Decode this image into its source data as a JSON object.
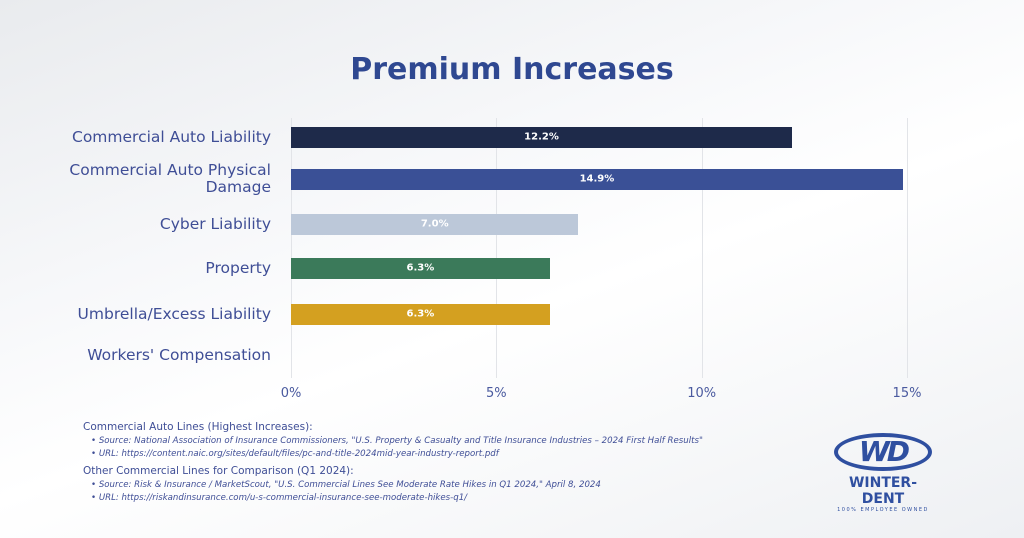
{
  "chart_data": {
    "type": "bar",
    "orientation": "horizontal",
    "title": "Premium Increases",
    "categories": [
      "Commercial Auto Liability",
      "Commercial Auto Physical Damage",
      "Cyber Liability",
      "Property",
      "Umbrella/Excess Liability",
      "Workers' Compensation"
    ],
    "values": [
      12.2,
      14.9,
      7.0,
      6.3,
      6.3,
      null
    ],
    "data_labels": [
      "12.2%",
      "14.9%",
      "7.0%",
      "6.3%",
      "6.3%",
      ""
    ],
    "colors": [
      "#1e2a4a",
      "#3a5096",
      "#bcc8d9",
      "#3b7a5a",
      "#d4a020",
      ""
    ],
    "xlim": [
      0,
      15
    ],
    "xticks": [
      "0%",
      "5%",
      "10%",
      "15%"
    ],
    "grid": true,
    "xlabel": "",
    "ylabel": ""
  },
  "notes": [
    {
      "heading": "Commercial Auto Lines (Highest Increases):",
      "items": [
        "Source: National Association of Insurance Commissioners, \"U.S. Property & Casualty and Title Insurance Industries – 2024 First Half Results\"",
        "URL: https://content.naic.org/sites/default/files/pc-and-title-2024mid-year-industry-report.pdf"
      ]
    },
    {
      "heading": "Other Commercial Lines for Comparison (Q1 2024):",
      "items": [
        "Source: Risk & Insurance / MarketScout, \"U.S. Commercial Lines See Moderate Rate Hikes in Q1 2024,\" April 8, 2024",
        "URL: https://riskandinsurance.com/u-s-commercial-insurance-see-moderate-hikes-q1/"
      ]
    }
  ],
  "logo": {
    "mark": "WD",
    "name": "WINTER-DENT",
    "tagline": "100% EMPLOYEE OWNED"
  }
}
